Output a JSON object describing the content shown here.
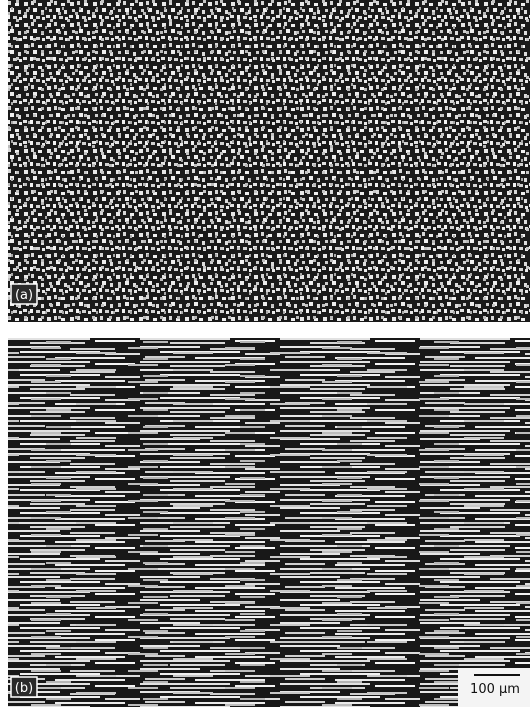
{
  "panels": [
    {
      "label": "(a)"
    },
    {
      "label": "(b)"
    }
  ],
  "scale_bar": {
    "label": "100 µm"
  }
}
